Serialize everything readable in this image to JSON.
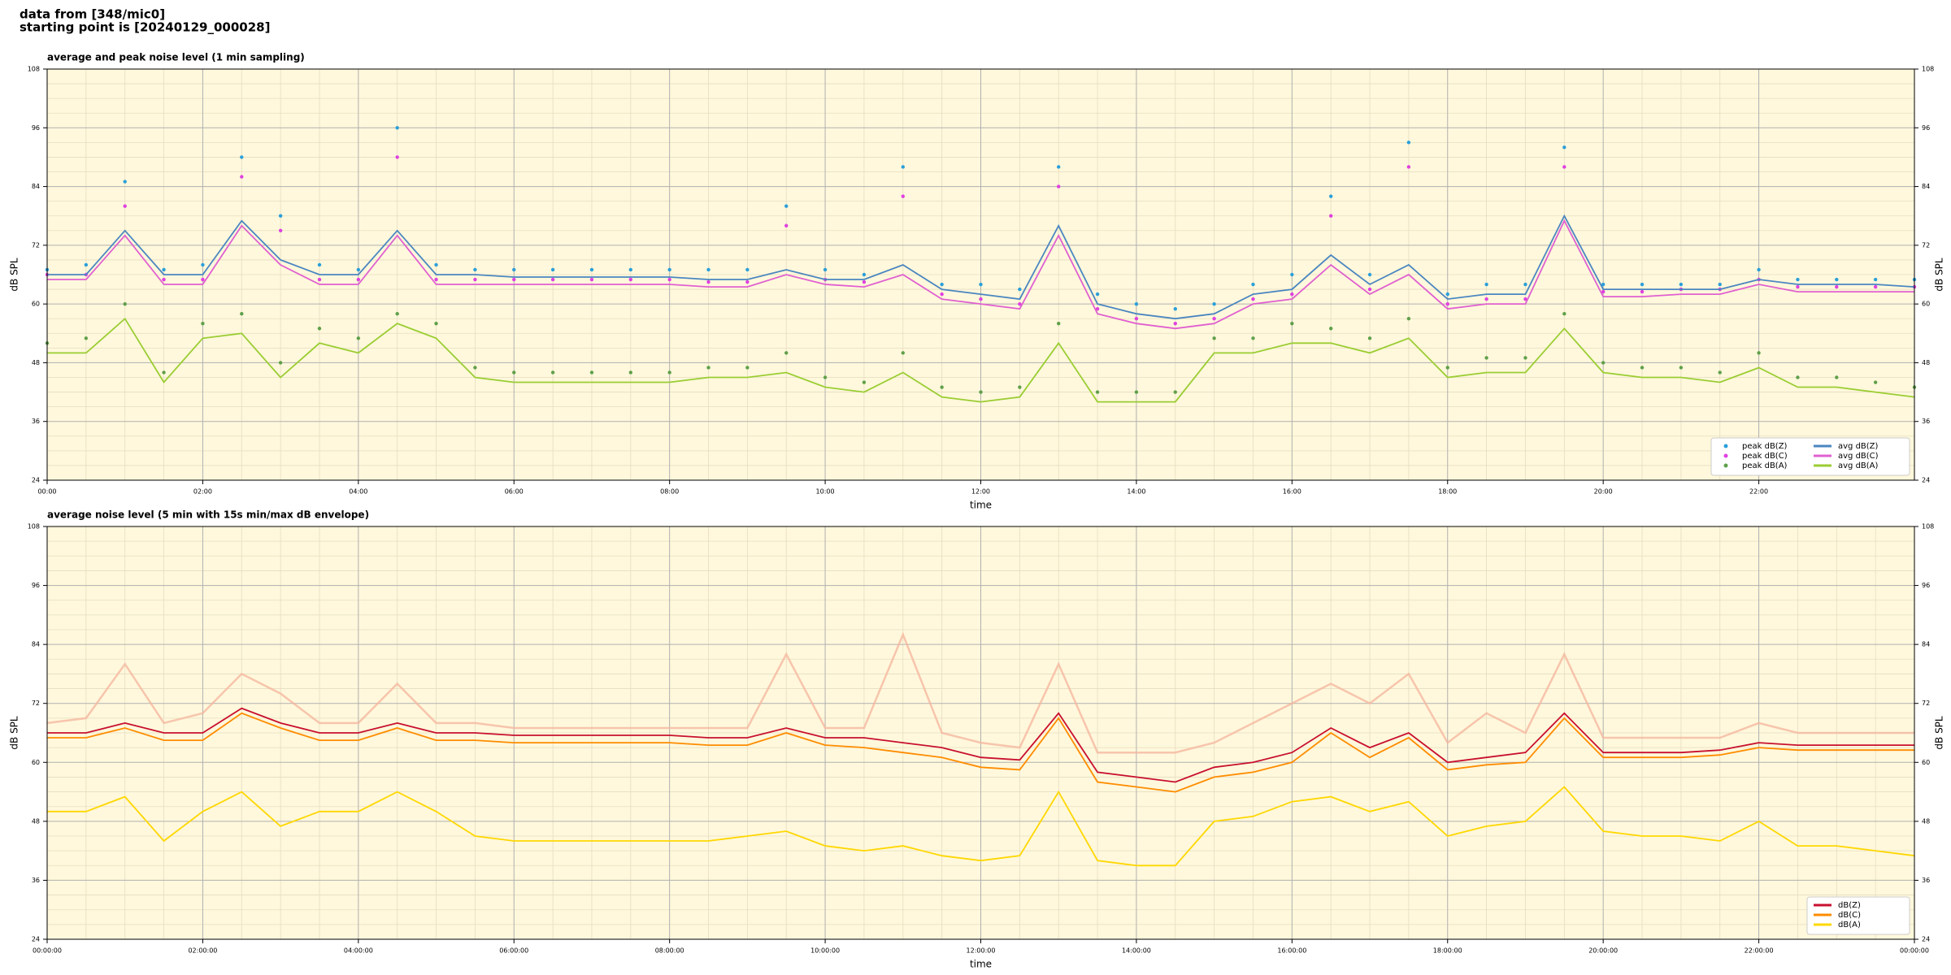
{
  "header": {
    "source": "data from [348/mic0]",
    "start": "starting point is [20240129_000028]"
  },
  "chart_data": [
    {
      "type": "line",
      "title": "average and peak noise level (1 min sampling)",
      "xlabel": "time",
      "ylabel": "dB SPL",
      "x": [
        0,
        0.5,
        1,
        1.5,
        2,
        2.5,
        3,
        3.5,
        4,
        4.5,
        5,
        5.5,
        6,
        6.5,
        7,
        7.5,
        8,
        8.5,
        9,
        9.5,
        10,
        10.5,
        11,
        11.5,
        12,
        12.5,
        13,
        13.5,
        14,
        14.5,
        15,
        15.5,
        16,
        16.5,
        17,
        17.5,
        18,
        18.5,
        19,
        19.5,
        20,
        20.5,
        21,
        21.5,
        22,
        22.5,
        23,
        23.5,
        24
      ],
      "xlim": [
        0,
        24
      ],
      "xticks": [
        {
          "value": 0,
          "label": "00:00"
        },
        {
          "value": 2,
          "label": "02:00"
        },
        {
          "value": 4,
          "label": "04:00"
        },
        {
          "value": 6,
          "label": "06:00"
        },
        {
          "value": 8,
          "label": "08:00"
        },
        {
          "value": 10,
          "label": "10:00"
        },
        {
          "value": 12,
          "label": "12:00"
        },
        {
          "value": 14,
          "label": "14:00"
        },
        {
          "value": 16,
          "label": "16:00"
        },
        {
          "value": 18,
          "label": "18:00"
        },
        {
          "value": 20,
          "label": "20:00"
        },
        {
          "value": 22,
          "label": "22:00"
        }
      ],
      "ylim": [
        24,
        108
      ],
      "yticks": [
        24,
        36,
        48,
        60,
        72,
        84,
        96,
        108
      ],
      "grid": true,
      "minor_grid": true,
      "legend": "lower right",
      "series": [
        {
          "name": "peak dB(Z)",
          "kind": "scatter",
          "color": "#2b9fd9",
          "values": [
            67,
            68,
            85,
            67,
            68,
            90,
            78,
            68,
            67,
            96,
            68,
            67,
            67,
            67,
            67,
            67,
            67,
            67,
            67,
            80,
            67,
            66,
            88,
            64,
            64,
            63,
            88,
            62,
            60,
            59,
            60,
            64,
            66,
            82,
            66,
            93,
            62,
            64,
            64,
            92,
            64,
            64,
            64,
            64,
            67,
            65,
            65,
            65,
            65
          ]
        },
        {
          "name": "peak dB(C)",
          "kind": "scatter",
          "color": "#e040e0",
          "values": [
            66,
            66,
            80,
            65,
            65,
            86,
            75,
            65,
            65,
            90,
            65,
            65,
            65,
            65,
            65,
            65,
            65,
            64.5,
            64.5,
            76,
            65,
            64.5,
            82,
            62,
            61,
            60,
            84,
            59,
            57,
            56,
            57,
            61,
            62,
            78,
            63,
            88,
            60,
            61,
            61,
            88,
            62.5,
            62.5,
            63,
            63,
            65,
            63.5,
            63.5,
            63.5,
            63.5
          ]
        },
        {
          "name": "peak dB(A)",
          "kind": "scatter",
          "color": "#5fa04a",
          "values": [
            52,
            53,
            60,
            46,
            56,
            58,
            48,
            55,
            53,
            58,
            56,
            47,
            46,
            46,
            46,
            46,
            46,
            47,
            47,
            50,
            45,
            44,
            50,
            43,
            42,
            43,
            56,
            42,
            42,
            42,
            53,
            53,
            56,
            55,
            53,
            57,
            47,
            49,
            49,
            58,
            48,
            47,
            47,
            46,
            50,
            45,
            45,
            44,
            43
          ]
        },
        {
          "name": "avg dB(Z)",
          "kind": "line",
          "color": "#4a86c0",
          "values": [
            66,
            66,
            75,
            66,
            66,
            77,
            69,
            66,
            66,
            75,
            66,
            66,
            65.5,
            65.5,
            65.5,
            65.5,
            65.5,
            65,
            65,
            67,
            65,
            65,
            68,
            63,
            62,
            61,
            76,
            60,
            58,
            57,
            58,
            62,
            63,
            70,
            64,
            68,
            61,
            62,
            62,
            78,
            63,
            63,
            63,
            63,
            65,
            64,
            64,
            64,
            63.5
          ]
        },
        {
          "name": "avg dB(C)",
          "kind": "line",
          "color": "#e060d0",
          "values": [
            65,
            65,
            74,
            64,
            64,
            76,
            68,
            64,
            64,
            74,
            64,
            64,
            64,
            64,
            64,
            64,
            64,
            63.5,
            63.5,
            66,
            64,
            63.5,
            66,
            61,
            60,
            59,
            74,
            58,
            56,
            55,
            56,
            60,
            61,
            68,
            62,
            66,
            59,
            60,
            60,
            77,
            61.5,
            61.5,
            62,
            62,
            64,
            62.5,
            62.5,
            62.5,
            62.5
          ]
        },
        {
          "name": "avg dB(A)",
          "kind": "line",
          "color": "#9acd32",
          "values": [
            50,
            50,
            57,
            44,
            53,
            54,
            45,
            52,
            50,
            56,
            53,
            45,
            44,
            44,
            44,
            44,
            44,
            45,
            45,
            46,
            43,
            42,
            46,
            41,
            40,
            41,
            52,
            40,
            40,
            40,
            50,
            50,
            52,
            52,
            50,
            53,
            45,
            46,
            46,
            55,
            46,
            45,
            45,
            44,
            47,
            43,
            43,
            42,
            41
          ]
        }
      ]
    },
    {
      "type": "line",
      "title": "average noise level (5 min with 15s min/max dB envelope)",
      "xlabel": "time",
      "ylabel": "dB SPL",
      "x": [
        0,
        0.5,
        1,
        1.5,
        2,
        2.5,
        3,
        3.5,
        4,
        4.5,
        5,
        5.5,
        6,
        6.5,
        7,
        7.5,
        8,
        8.5,
        9,
        9.5,
        10,
        10.5,
        11,
        11.5,
        12,
        12.5,
        13,
        13.5,
        14,
        14.5,
        15,
        15.5,
        16,
        16.5,
        17,
        17.5,
        18,
        18.5,
        19,
        19.5,
        20,
        20.5,
        21,
        21.5,
        22,
        22.5,
        23,
        23.5,
        24
      ],
      "xlim": [
        0,
        24
      ],
      "xticks": [
        {
          "value": 0,
          "label": "00:00:00"
        },
        {
          "value": 2,
          "label": "02:00:00"
        },
        {
          "value": 4,
          "label": "04:00:00"
        },
        {
          "value": 6,
          "label": "06:00:00"
        },
        {
          "value": 8,
          "label": "08:00:00"
        },
        {
          "value": 10,
          "label": "10:00:00"
        },
        {
          "value": 12,
          "label": "12:00:00"
        },
        {
          "value": 14,
          "label": "14:00:00"
        },
        {
          "value": 16,
          "label": "16:00:00"
        },
        {
          "value": 18,
          "label": "18:00:00"
        },
        {
          "value": 20,
          "label": "20:00:00"
        },
        {
          "value": 22,
          "label": "22:00:00"
        },
        {
          "value": 24,
          "label": "00:00:00"
        }
      ],
      "ylim": [
        24,
        108
      ],
      "yticks": [
        24,
        36,
        48,
        60,
        72,
        84,
        96,
        108
      ],
      "grid": true,
      "minor_grid": true,
      "legend": "lower right",
      "envelope": {
        "color": "#f4b49c",
        "values": [
          68,
          69,
          80,
          68,
          70,
          78,
          74,
          68,
          68,
          76,
          68,
          68,
          67,
          67,
          67,
          67,
          67,
          67,
          67,
          82,
          67,
          67,
          86,
          66,
          64,
          63,
          80,
          62,
          62,
          62,
          64,
          68,
          72,
          76,
          72,
          78,
          64,
          70,
          66,
          82,
          65,
          65,
          65,
          65,
          68,
          66,
          66,
          66,
          66
        ]
      },
      "series": [
        {
          "name": "dB(Z)",
          "kind": "line",
          "color": "#c8102e",
          "values": [
            66,
            66,
            68,
            66,
            66,
            71,
            68,
            66,
            66,
            68,
            66,
            66,
            65.5,
            65.5,
            65.5,
            65.5,
            65.5,
            65,
            65,
            67,
            65,
            65,
            64,
            63,
            61,
            60.5,
            70,
            58,
            57,
            56,
            59,
            60,
            62,
            67,
            63,
            66,
            60,
            61,
            62,
            70,
            62,
            62,
            62,
            62.5,
            64,
            63.5,
            63.5,
            63.5,
            63.5
          ]
        },
        {
          "name": "dB(C)",
          "kind": "line",
          "color": "#ff8c00",
          "values": [
            65,
            65,
            67,
            64.5,
            64.5,
            70,
            67,
            64.5,
            64.5,
            67,
            64.5,
            64.5,
            64,
            64,
            64,
            64,
            64,
            63.5,
            63.5,
            66,
            63.5,
            63,
            62,
            61,
            59,
            58.5,
            69,
            56,
            55,
            54,
            57,
            58,
            60,
            66,
            61,
            65,
            58.5,
            59.5,
            60,
            69,
            61,
            61,
            61,
            61.5,
            63,
            62.5,
            62.5,
            62.5,
            62.5
          ]
        },
        {
          "name": "dB(A)",
          "kind": "line",
          "color": "#ffd700",
          "values": [
            50,
            50,
            53,
            44,
            50,
            54,
            47,
            50,
            50,
            54,
            50,
            45,
            44,
            44,
            44,
            44,
            44,
            44,
            45,
            46,
            43,
            42,
            43,
            41,
            40,
            41,
            54,
            40,
            39,
            39,
            48,
            49,
            52,
            53,
            50,
            52,
            45,
            47,
            48,
            55,
            46,
            45,
            45,
            44,
            48,
            43,
            43,
            42,
            41
          ]
        }
      ]
    }
  ]
}
